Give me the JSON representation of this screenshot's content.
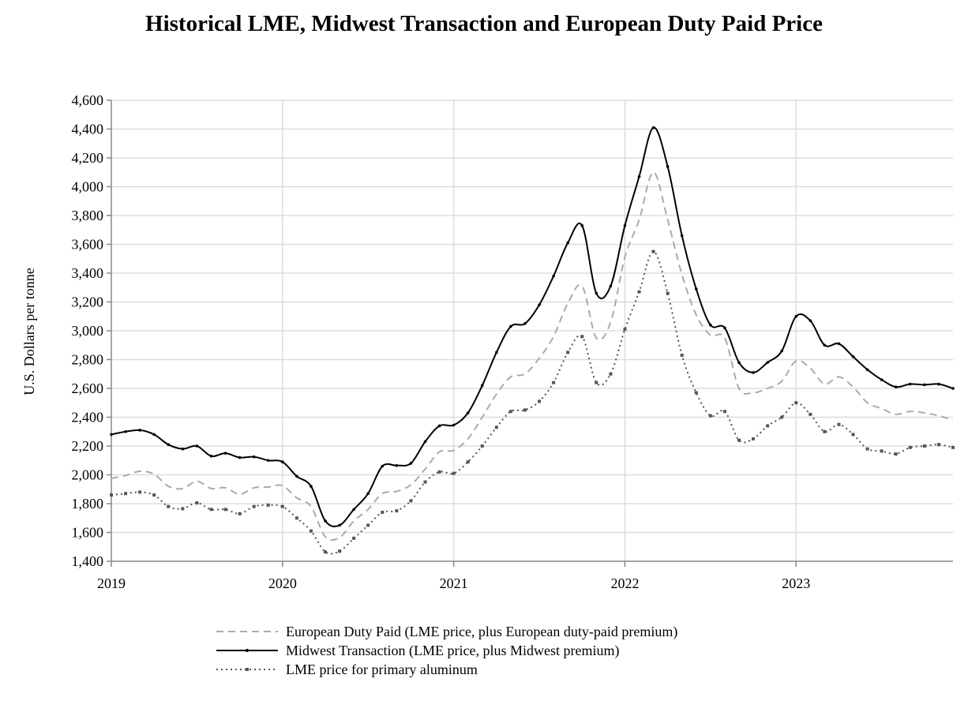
{
  "chart_data": {
    "type": "line",
    "title": "Historical LME, Midwest Transaction and European Duty Paid Price",
    "xlabel": "",
    "ylabel": "U.S. Dollars per tonne",
    "ylim": [
      1400,
      4600
    ],
    "yticks": [
      1400,
      1600,
      1800,
      2000,
      2200,
      2400,
      2600,
      2800,
      3000,
      3200,
      3400,
      3600,
      3800,
      4000,
      4200,
      4400,
      4600
    ],
    "ytick_labels": [
      "1,400",
      "1,600",
      "1,800",
      "2,000",
      "2,200",
      "2,400",
      "2,600",
      "2,800",
      "3,000",
      "3,200",
      "3,400",
      "3,600",
      "3,800",
      "4,000",
      "4,200",
      "4,400",
      "4,600"
    ],
    "xticks": [
      "2019",
      "2020",
      "2021",
      "2022",
      "2023"
    ],
    "grid": true,
    "legend_position": "bottom",
    "x": [
      "2019-01",
      "2019-02",
      "2019-03",
      "2019-04",
      "2019-05",
      "2019-06",
      "2019-07",
      "2019-08",
      "2019-09",
      "2019-10",
      "2019-11",
      "2019-12",
      "2020-01",
      "2020-02",
      "2020-03",
      "2020-04",
      "2020-05",
      "2020-06",
      "2020-07",
      "2020-08",
      "2020-09",
      "2020-10",
      "2020-11",
      "2020-12",
      "2021-01",
      "2021-02",
      "2021-03",
      "2021-04",
      "2021-05",
      "2021-06",
      "2021-07",
      "2021-08",
      "2021-09",
      "2021-10",
      "2021-11",
      "2021-12",
      "2022-01",
      "2022-02",
      "2022-03",
      "2022-04",
      "2022-05",
      "2022-06",
      "2022-07",
      "2022-08",
      "2022-09",
      "2022-10",
      "2022-11",
      "2022-12",
      "2023-01",
      "2023-02",
      "2023-03",
      "2023-04",
      "2023-05",
      "2023-06",
      "2023-07",
      "2023-08",
      "2023-09",
      "2023-10",
      "2023-11",
      "2023-12"
    ],
    "series": [
      {
        "name": "European Duty Paid (LME price, plus European duty-paid premium)",
        "style": "dashed",
        "color": "#aaaaaa",
        "values": [
          1975,
          1995,
          2025,
          2005,
          1920,
          1905,
          1955,
          1905,
          1910,
          1865,
          1910,
          1915,
          1925,
          1840,
          1780,
          1570,
          1565,
          1680,
          1760,
          1870,
          1885,
          1930,
          2040,
          2160,
          2170,
          2250,
          2400,
          2560,
          2680,
          2700,
          2810,
          2960,
          3190,
          3310,
          2950,
          3060,
          3510,
          3770,
          4100,
          3770,
          3390,
          3110,
          2970,
          2950,
          2600,
          2570,
          2600,
          2650,
          2790,
          2740,
          2630,
          2680,
          2610,
          2500,
          2460,
          2420,
          2440,
          2430,
          2410,
          2380
        ]
      },
      {
        "name": "Midwest Transaction (LME price, plus Midwest premium)",
        "style": "solid",
        "color": "#000000",
        "values": [
          2280,
          2300,
          2310,
          2280,
          2210,
          2180,
          2200,
          2130,
          2150,
          2120,
          2125,
          2100,
          2090,
          1990,
          1920,
          1680,
          1650,
          1760,
          1870,
          2060,
          2065,
          2080,
          2230,
          2340,
          2345,
          2430,
          2620,
          2850,
          3030,
          3050,
          3180,
          3380,
          3610,
          3730,
          3260,
          3310,
          3730,
          4070,
          4410,
          4140,
          3660,
          3290,
          3040,
          3020,
          2780,
          2710,
          2780,
          2860,
          3100,
          3070,
          2900,
          2910,
          2820,
          2730,
          2660,
          2610,
          2630,
          2625,
          2630,
          2600
        ]
      },
      {
        "name": "LME price for primary aluminum",
        "style": "dotted",
        "color": "#555555",
        "values": [
          1860,
          1870,
          1880,
          1860,
          1780,
          1765,
          1805,
          1760,
          1760,
          1730,
          1780,
          1790,
          1780,
          1700,
          1610,
          1465,
          1470,
          1560,
          1650,
          1740,
          1750,
          1820,
          1950,
          2020,
          2010,
          2090,
          2200,
          2330,
          2440,
          2450,
          2510,
          2640,
          2850,
          2960,
          2640,
          2700,
          3010,
          3270,
          3550,
          3260,
          2830,
          2570,
          2410,
          2440,
          2240,
          2250,
          2340,
          2400,
          2500,
          2420,
          2300,
          2350,
          2280,
          2180,
          2165,
          2145,
          2190,
          2200,
          2210,
          2190
        ]
      }
    ]
  }
}
